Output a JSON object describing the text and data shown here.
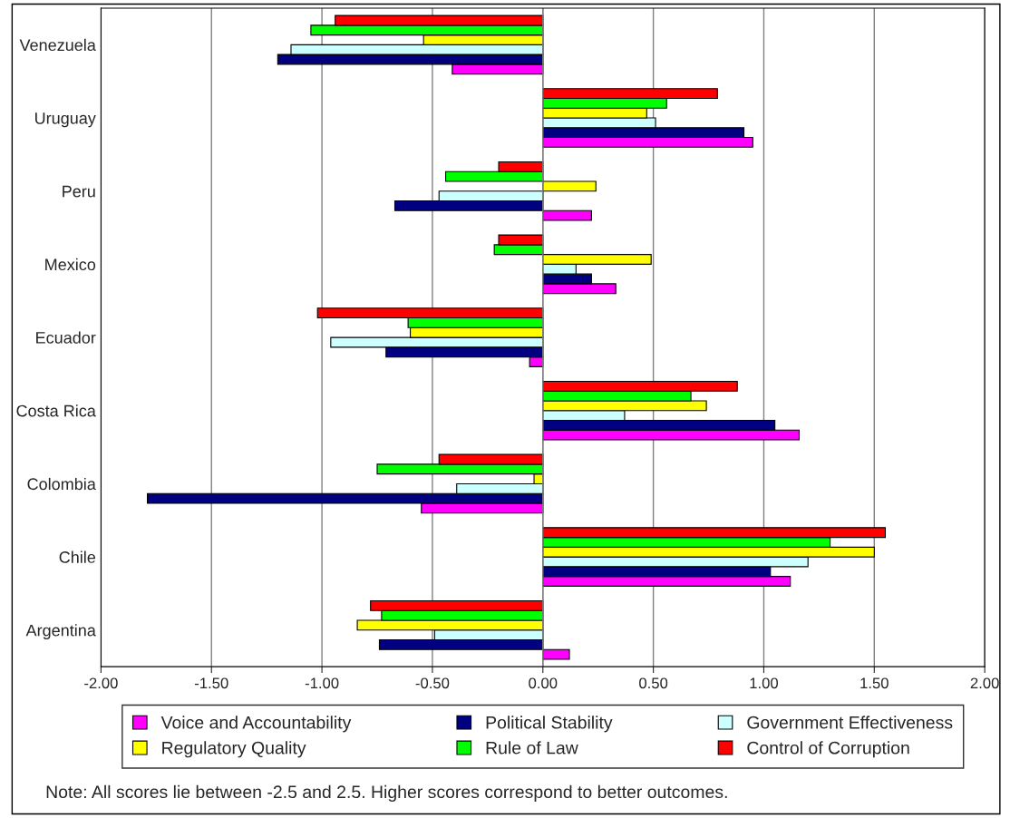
{
  "chart_data": {
    "type": "bar",
    "orientation": "horizontal",
    "categories": [
      "Venezuela",
      "Uruguay",
      "Peru",
      "Mexico",
      "Ecuador",
      "Costa Rica",
      "Colombia",
      "Chile",
      "Argentina"
    ],
    "series": [
      {
        "name": "Voice and Accountability",
        "color": "#ff00ff",
        "values": [
          -0.41,
          0.95,
          0.22,
          0.33,
          -0.06,
          1.16,
          -0.55,
          1.12,
          0.12
        ]
      },
      {
        "name": "Political Stability",
        "color": "#000080",
        "values": [
          -1.2,
          0.91,
          -0.67,
          0.22,
          -0.71,
          1.05,
          -1.79,
          1.03,
          -0.74
        ]
      },
      {
        "name": "Government Effectiveness",
        "color": "#ccffff",
        "values": [
          -1.14,
          0.51,
          -0.47,
          0.15,
          -0.96,
          0.37,
          -0.39,
          1.2,
          -0.49
        ]
      },
      {
        "name": "Regulatory Quality",
        "color": "#ffff00",
        "values": [
          -0.54,
          0.47,
          0.24,
          0.49,
          -0.6,
          0.74,
          -0.04,
          1.5,
          -0.84
        ]
      },
      {
        "name": "Rule of Law",
        "color": "#00ff00",
        "values": [
          -1.05,
          0.56,
          -0.44,
          -0.22,
          -0.61,
          0.67,
          -0.75,
          1.3,
          -0.73
        ]
      },
      {
        "name": "Control of Corruption",
        "color": "#ff0000",
        "values": [
          -0.94,
          0.79,
          -0.2,
          -0.2,
          -1.02,
          0.88,
          -0.47,
          1.55,
          -0.78
        ]
      }
    ],
    "xlim": [
      -2,
      2
    ],
    "xticks": [
      {
        "value": -2,
        "label": "-2.00"
      },
      {
        "value": -1.5,
        "label": "-1.50"
      },
      {
        "value": -1,
        "label": "-1.00"
      },
      {
        "value": -0.5,
        "label": "-0.50"
      },
      {
        "value": 0,
        "label": "0.00"
      },
      {
        "value": 0.5,
        "label": "0.50"
      },
      {
        "value": 1,
        "label": "1.00"
      },
      {
        "value": 1.5,
        "label": "1.50"
      },
      {
        "value": 2,
        "label": "2.00"
      }
    ],
    "grid": "x",
    "legend": "bottom",
    "annotations": [
      "Note: All scores lie between -2.5 and 2.5. Higher scores correspond to better outcomes."
    ]
  }
}
